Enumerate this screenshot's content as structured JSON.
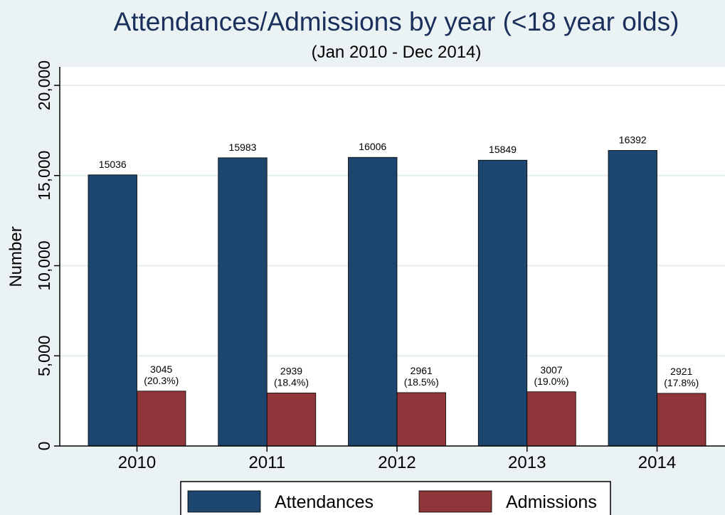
{
  "chart_data": {
    "type": "bar",
    "title": "Attendances/Admissions by year (<18 year olds)",
    "subtitle": "(Jan 2010 - Dec 2014)",
    "xlabel": "",
    "ylabel": "Number",
    "ylim": [
      0,
      20000
    ],
    "yticks": [
      0,
      5000,
      10000,
      15000,
      20000
    ],
    "ytick_labels": [
      "0",
      "5,000",
      "10,000",
      "15,000",
      "20,000"
    ],
    "categories": [
      "2010",
      "2011",
      "2012",
      "2013",
      "2014"
    ],
    "series": [
      {
        "name": "Attendances",
        "color": "#1c466e",
        "values": [
          15036,
          15983,
          16006,
          15849,
          16392
        ],
        "labels": [
          [
            "15036"
          ],
          [
            "15983"
          ],
          [
            "16006"
          ],
          [
            "15849"
          ],
          [
            "16392"
          ]
        ]
      },
      {
        "name": "Admissions",
        "color": "#8f363b",
        "values": [
          3045,
          2939,
          2961,
          3007,
          2921
        ],
        "labels": [
          [
            "3045",
            "(20.3%)"
          ],
          [
            "2939",
            "(18.4%)"
          ],
          [
            "2961",
            "(18.5%)"
          ],
          [
            "3007",
            "(19.0%)"
          ],
          [
            "2921",
            "(17.8%)"
          ]
        ]
      }
    ],
    "grid": true,
    "legend": "bottom",
    "colors": {
      "background": "#eaf2f3",
      "plot_background": "#ffffff",
      "gridline": "#e4eef0",
      "title": "#1a2f5c"
    }
  }
}
